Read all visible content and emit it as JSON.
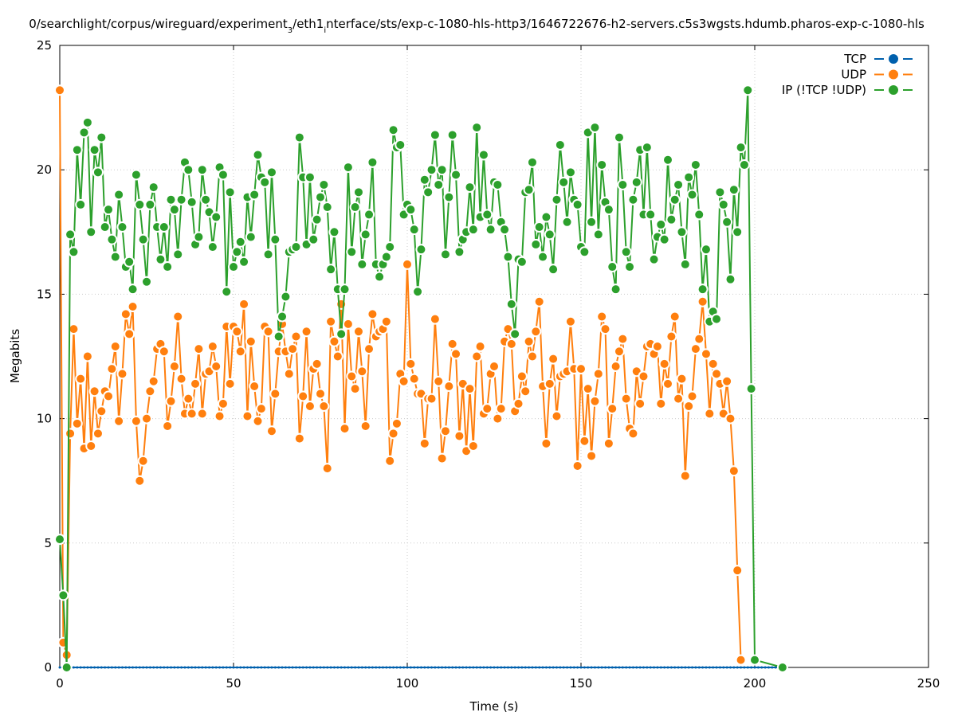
{
  "chart_data": {
    "type": "line",
    "title_parts": [
      {
        "text": "0/searchlight/corpus/wireguard/experiment",
        "sub": false
      },
      {
        "text": "3",
        "sub": true
      },
      {
        "text": "/eth1",
        "sub": false
      },
      {
        "text": "i",
        "sub": true
      },
      {
        "text": "nterface/sts/exp-c-1080-hls-http3/1646722676-h2-servers.c5s3wgsts.hdumb.pharos-exp-c-1080-hls",
        "sub": false
      }
    ],
    "xlabel": "Time (s)",
    "ylabel": "Megabits",
    "xlim": [
      0,
      250
    ],
    "ylim": [
      0,
      25
    ],
    "xticks": [
      "0",
      "50",
      "100",
      "150",
      "200",
      "250"
    ],
    "yticks": [
      "0",
      "5",
      "10",
      "15",
      "20",
      "25"
    ],
    "grid": true,
    "legend_position": "top-right",
    "series": [
      {
        "name": "TCP",
        "color": "#0060ad",
        "x_start": 0,
        "x_step": 1,
        "values": [
          0,
          0,
          0,
          0,
          0,
          0,
          0,
          0,
          0,
          0,
          0,
          0,
          0,
          0,
          0,
          0,
          0,
          0,
          0,
          0,
          0,
          0,
          0,
          0,
          0,
          0,
          0,
          0,
          0,
          0,
          0,
          0,
          0,
          0,
          0,
          0,
          0,
          0,
          0,
          0,
          0,
          0,
          0,
          0,
          0,
          0,
          0,
          0,
          0,
          0,
          0,
          0,
          0,
          0,
          0,
          0,
          0,
          0,
          0,
          0,
          0,
          0,
          0,
          0,
          0,
          0,
          0,
          0,
          0,
          0,
          0,
          0,
          0,
          0,
          0,
          0,
          0,
          0,
          0,
          0,
          0,
          0,
          0,
          0,
          0,
          0,
          0,
          0,
          0,
          0,
          0,
          0,
          0,
          0,
          0,
          0,
          0,
          0,
          0,
          0,
          0,
          0,
          0,
          0,
          0,
          0,
          0,
          0,
          0,
          0,
          0,
          0,
          0,
          0,
          0,
          0,
          0,
          0,
          0,
          0,
          0,
          0,
          0,
          0,
          0,
          0,
          0,
          0,
          0,
          0,
          0,
          0,
          0,
          0,
          0,
          0,
          0,
          0,
          0,
          0,
          0,
          0,
          0,
          0,
          0,
          0,
          0,
          0,
          0,
          0,
          0,
          0,
          0,
          0,
          0,
          0,
          0,
          0,
          0,
          0,
          0,
          0,
          0,
          0,
          0,
          0,
          0,
          0,
          0,
          0,
          0,
          0,
          0,
          0,
          0,
          0,
          0,
          0,
          0,
          0,
          0,
          0,
          0,
          0,
          0,
          0,
          0,
          0,
          0,
          0,
          0,
          0,
          0,
          0,
          0,
          0,
          0,
          0,
          0,
          0,
          0,
          0,
          0,
          0,
          0,
          0,
          0,
          0,
          0
        ]
      },
      {
        "name": "UDP",
        "color": "#ff7f0e",
        "x_start": 0,
        "x_step": 1,
        "values": [
          23.2,
          1.0,
          0.5,
          9.4,
          13.6,
          9.8,
          11.6,
          8.8,
          12.5,
          8.9,
          11.1,
          9.4,
          10.3,
          11.1,
          10.9,
          12.0,
          12.9,
          9.9,
          11.8,
          14.2,
          13.4,
          14.5,
          9.9,
          7.5,
          8.3,
          10.0,
          11.1,
          11.5,
          12.8,
          13.0,
          12.7,
          9.7,
          10.7,
          12.1,
          14.1,
          11.6,
          10.2,
          10.8,
          10.2,
          11.4,
          12.8,
          10.2,
          11.8,
          11.9,
          12.9,
          12.1,
          10.1,
          10.6,
          13.7,
          11.4,
          13.7,
          13.5,
          12.7,
          14.6,
          10.1,
          13.1,
          11.3,
          9.9,
          10.4,
          13.7,
          13.5,
          9.5,
          11.0,
          12.7,
          13.8,
          12.7,
          11.8,
          12.8,
          13.3,
          9.2,
          10.9,
          13.5,
          10.5,
          12.0,
          12.2,
          11.0,
          10.5,
          8.0,
          13.9,
          13.1,
          12.5,
          14.6,
          9.6,
          13.8,
          11.7,
          11.2,
          13.5,
          11.9,
          9.7,
          12.8,
          14.2,
          13.3,
          13.5,
          13.6,
          13.9,
          8.3,
          9.4,
          9.8,
          11.8,
          11.5,
          16.2,
          12.2,
          11.6,
          11.0,
          11.0,
          9.0,
          10.8,
          10.8,
          14.0,
          11.5,
          8.4,
          9.5,
          11.3,
          13.0,
          12.6,
          9.3,
          11.4,
          8.7,
          11.2,
          8.9,
          12.5,
          12.9,
          10.2,
          10.4,
          11.8,
          12.1,
          10.0,
          10.4,
          13.1,
          13.6,
          13.0,
          10.3,
          10.6,
          11.7,
          11.1,
          13.1,
          12.5,
          13.5,
          14.7,
          11.3,
          9.0,
          11.4,
          12.4,
          10.1,
          11.7,
          11.8,
          11.9,
          13.9,
          12.0,
          8.1,
          12.0,
          9.1,
          11.2,
          8.5,
          10.7,
          11.8,
          14.1,
          13.6,
          9.0,
          10.4,
          12.1,
          12.7,
          13.2,
          10.8,
          9.6,
          9.4,
          11.9,
          10.6,
          11.7,
          12.9,
          13.0,
          12.6,
          12.9,
          10.6,
          12.2,
          11.4,
          13.3,
          14.1,
          10.8,
          11.6,
          7.7,
          10.5,
          10.9,
          12.8,
          13.2,
          14.7,
          12.6,
          10.2,
          12.2,
          11.8,
          11.4,
          10.2,
          11.5,
          10.0,
          7.9,
          3.9,
          0.3
        ]
      },
      {
        "name": "IP (!TCP  !UDP)",
        "color": "#2ca02c",
        "x_start": 0,
        "x_step": 1,
        "values": [
          5.15,
          2.9,
          0,
          17.4,
          16.7,
          20.8,
          18.6,
          21.5,
          21.9,
          17.5,
          20.8,
          19.9,
          21.3,
          17.7,
          18.4,
          17.2,
          16.5,
          19.0,
          17.7,
          16.1,
          16.3,
          15.2,
          19.8,
          18.6,
          17.2,
          15.5,
          18.6,
          19.3,
          17.7,
          16.4,
          17.7,
          16.1,
          18.8,
          18.4,
          16.6,
          18.8,
          20.3,
          20.0,
          18.7,
          17.0,
          17.3,
          20.0,
          18.8,
          18.3,
          16.9,
          18.1,
          20.1,
          19.8,
          15.1,
          19.1,
          16.1,
          16.7,
          17.1,
          16.3,
          18.9,
          17.3,
          19.0,
          20.6,
          19.7,
          19.5,
          16.6,
          19.9,
          17.2,
          13.3,
          14.1,
          14.9,
          16.7,
          16.8,
          16.9,
          21.3,
          19.7,
          17.0,
          19.7,
          17.2,
          18.0,
          18.9,
          19.4,
          18.5,
          16.0,
          17.5,
          15.2,
          13.4,
          15.2,
          20.1,
          16.7,
          18.5,
          19.1,
          16.2,
          17.4,
          18.2,
          20.3,
          16.2,
          15.7,
          16.2,
          16.5,
          16.9,
          21.6,
          20.9,
          21.0,
          18.2,
          18.6,
          18.4,
          17.6,
          15.1,
          16.8,
          19.6,
          19.1,
          20.0,
          21.4,
          19.4,
          20.0,
          16.6,
          18.9,
          21.4,
          19.8,
          16.7,
          17.2,
          17.5,
          19.3,
          17.6,
          21.7,
          18.1,
          20.6,
          18.2,
          17.6,
          19.5,
          19.4,
          17.9,
          17.6,
          16.5,
          14.6,
          13.4,
          16.4,
          16.3,
          19.1,
          19.2,
          20.3,
          17.0,
          17.7,
          16.5,
          18.1,
          17.4,
          16.0,
          18.8,
          21.0,
          19.5,
          17.9,
          19.9,
          18.8,
          18.6,
          16.9,
          16.7,
          21.5,
          17.9,
          21.7,
          17.4,
          20.2,
          18.7,
          18.4,
          16.1,
          15.2,
          21.3,
          19.4,
          16.7,
          16.1,
          18.8,
          19.5,
          20.8,
          18.2,
          20.9,
          18.2,
          16.4,
          17.3,
          17.8,
          17.2,
          20.4,
          18.0,
          18.8,
          19.4,
          17.5,
          16.2,
          19.7,
          19.0,
          20.2,
          18.2,
          15.2,
          16.8,
          13.9,
          14.3,
          14.0,
          19.1,
          18.6,
          17.9,
          15.6,
          19.2,
          17.5,
          20.9,
          20.2,
          23.2,
          11.2,
          0.3
        ]
      }
    ],
    "extra_points": [
      {
        "series": "IP (!TCP  !UDP)",
        "x": 208,
        "y": 0
      }
    ]
  }
}
